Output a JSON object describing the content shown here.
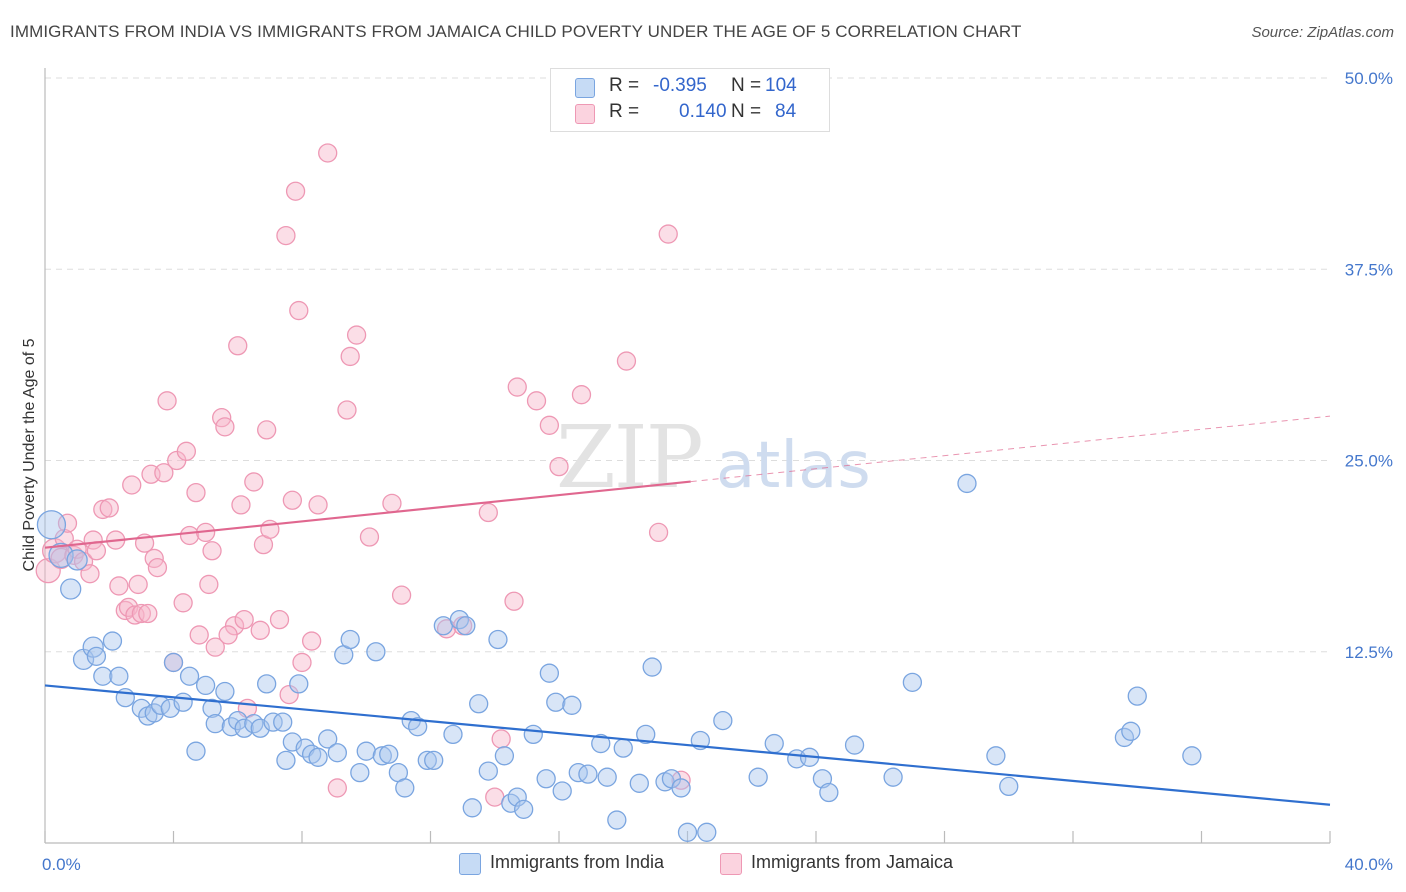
{
  "title": "IMMIGRANTS FROM INDIA VS IMMIGRANTS FROM JAMAICA CHILD POVERTY UNDER THE AGE OF 5 CORRELATION CHART",
  "source": "Source: ZipAtlas.com",
  "watermark": {
    "zip": "ZIP",
    "atlas": "atlas"
  },
  "colors": {
    "india_fill": "#a9c6ee",
    "india_stroke": "#7aa5e0",
    "india_line": "#2f6fcf",
    "jamaica_fill": "#f6b6c9",
    "jamaica_stroke": "#ee98b4",
    "jamaica_line": "#e0678f",
    "tick_label": "#4477cc",
    "grid": "#dddddd"
  },
  "legend": {
    "rows": [
      {
        "r_label": "R =",
        "r_value": "-0.395",
        "n_label": "N =",
        "n_value": "104"
      },
      {
        "r_label": "R =",
        "r_value": "0.140",
        "n_label": "N =",
        "n_value": "84"
      }
    ]
  },
  "bottom_legend": {
    "india": "Immigrants from India",
    "jamaica": "Immigrants from Jamaica"
  },
  "chart_data": {
    "type": "scatter",
    "title": "IMMIGRANTS FROM INDIA VS IMMIGRANTS FROM JAMAICA CHILD POVERTY UNDER THE AGE OF 5 CORRELATION CHART",
    "xlabel": "",
    "ylabel": "Child Poverty Under the Age of 5",
    "xlim": [
      0,
      40
    ],
    "ylim": [
      0,
      50
    ],
    "x_tick_labels": [
      "0.0%",
      "40.0%"
    ],
    "y_ticks": [
      12.5,
      25.0,
      37.5,
      50.0
    ],
    "y_tick_labels": [
      "12.5%",
      "25.0%",
      "37.5%",
      "50.0%"
    ],
    "grid": true,
    "legend_position": "top-center",
    "series": [
      {
        "name": "Immigrants from India",
        "color": "#a9c6ee",
        "trend": {
          "x": [
            0,
            40
          ],
          "y": [
            10.3,
            2.5
          ],
          "dashed_from_x": null
        },
        "points": [
          [
            0.2,
            20.8,
            14
          ],
          [
            0.5,
            18.8,
            12
          ],
          [
            1.0,
            18.5,
            10
          ],
          [
            0.8,
            16.6,
            10
          ],
          [
            1.2,
            12.0,
            10
          ],
          [
            1.5,
            12.8,
            10
          ],
          [
            1.6,
            12.2,
            9
          ],
          [
            1.8,
            10.9,
            9
          ],
          [
            2.1,
            13.2,
            9
          ],
          [
            2.3,
            10.9,
            9
          ],
          [
            2.5,
            9.5,
            9
          ],
          [
            3.0,
            8.8,
            9
          ],
          [
            3.2,
            8.3,
            9
          ],
          [
            3.4,
            8.5,
            9
          ],
          [
            3.6,
            9.0,
            9
          ],
          [
            3.9,
            8.8,
            9
          ],
          [
            4.0,
            11.8,
            9
          ],
          [
            4.3,
            9.2,
            9
          ],
          [
            4.5,
            10.9,
            9
          ],
          [
            4.7,
            6.0,
            9
          ],
          [
            5.0,
            10.3,
            9
          ],
          [
            5.2,
            8.8,
            9
          ],
          [
            5.3,
            7.8,
            9
          ],
          [
            5.6,
            9.9,
            9
          ],
          [
            5.8,
            7.6,
            9
          ],
          [
            6.0,
            8.0,
            9
          ],
          [
            6.2,
            7.5,
            9
          ],
          [
            6.5,
            7.8,
            9
          ],
          [
            6.7,
            7.5,
            9
          ],
          [
            6.9,
            10.4,
            9
          ],
          [
            7.1,
            7.9,
            9
          ],
          [
            7.4,
            7.9,
            9
          ],
          [
            7.5,
            5.4,
            9
          ],
          [
            7.7,
            6.6,
            9
          ],
          [
            7.9,
            10.4,
            9
          ],
          [
            8.1,
            6.2,
            9
          ],
          [
            8.3,
            5.8,
            9
          ],
          [
            8.5,
            5.6,
            9
          ],
          [
            8.8,
            6.8,
            9
          ],
          [
            9.1,
            5.9,
            9
          ],
          [
            9.3,
            12.3,
            9
          ],
          [
            9.5,
            13.3,
            9
          ],
          [
            9.8,
            4.6,
            9
          ],
          [
            10.0,
            6.0,
            9
          ],
          [
            10.3,
            12.5,
            9
          ],
          [
            10.5,
            5.7,
            9
          ],
          [
            10.7,
            5.8,
            9
          ],
          [
            11.0,
            4.6,
            9
          ],
          [
            11.2,
            3.6,
            9
          ],
          [
            11.4,
            8.0,
            9
          ],
          [
            11.6,
            7.6,
            9
          ],
          [
            11.9,
            5.4,
            9
          ],
          [
            12.1,
            5.4,
            9
          ],
          [
            12.4,
            14.2,
            9
          ],
          [
            12.7,
            7.1,
            9
          ],
          [
            12.9,
            14.6,
            9
          ],
          [
            13.1,
            14.2,
            9
          ],
          [
            13.3,
            2.3,
            9
          ],
          [
            13.5,
            9.1,
            9
          ],
          [
            13.8,
            4.7,
            9
          ],
          [
            14.1,
            13.3,
            9
          ],
          [
            14.3,
            5.7,
            9
          ],
          [
            14.5,
            2.6,
            9
          ],
          [
            14.7,
            3.0,
            9
          ],
          [
            14.9,
            2.2,
            9
          ],
          [
            15.2,
            7.1,
            9
          ],
          [
            15.6,
            4.2,
            9
          ],
          [
            15.7,
            11.1,
            9
          ],
          [
            15.9,
            9.2,
            9
          ],
          [
            16.1,
            3.4,
            9
          ],
          [
            16.4,
            9.0,
            9
          ],
          [
            16.6,
            4.6,
            9
          ],
          [
            16.9,
            4.5,
            9
          ],
          [
            17.3,
            6.5,
            9
          ],
          [
            17.5,
            4.3,
            9
          ],
          [
            17.8,
            1.5,
            9
          ],
          [
            18.0,
            6.2,
            9
          ],
          [
            18.5,
            3.9,
            9
          ],
          [
            18.7,
            7.1,
            9
          ],
          [
            18.9,
            11.5,
            9
          ],
          [
            19.3,
            4.0,
            9
          ],
          [
            19.5,
            4.2,
            9
          ],
          [
            19.8,
            3.6,
            9
          ],
          [
            20.0,
            0.7,
            9
          ],
          [
            20.4,
            6.7,
            9
          ],
          [
            20.6,
            0.7,
            9
          ],
          [
            21.1,
            8.0,
            9
          ],
          [
            22.2,
            4.3,
            9
          ],
          [
            22.7,
            6.5,
            9
          ],
          [
            23.4,
            5.5,
            9
          ],
          [
            23.8,
            5.6,
            9
          ],
          [
            24.2,
            4.2,
            9
          ],
          [
            24.4,
            3.3,
            9
          ],
          [
            25.2,
            6.4,
            9
          ],
          [
            26.4,
            4.3,
            9
          ],
          [
            27.0,
            10.5,
            9
          ],
          [
            28.7,
            23.5,
            9
          ],
          [
            29.6,
            5.7,
            9
          ],
          [
            30.0,
            3.7,
            9
          ],
          [
            33.6,
            6.9,
            9
          ],
          [
            33.8,
            7.3,
            9
          ],
          [
            34.0,
            9.6,
            9
          ],
          [
            35.7,
            5.7,
            9
          ]
        ]
      },
      {
        "name": "Immigrants from Jamaica",
        "color": "#f6b6c9",
        "trend": {
          "x": [
            0,
            40
          ],
          "y": [
            19.3,
            27.9
          ],
          "dashed_from_x": 20.1
        },
        "points": [
          [
            0.1,
            17.8,
            12
          ],
          [
            0.3,
            19.1,
            12
          ],
          [
            0.5,
            18.6,
            10
          ],
          [
            0.6,
            19.9,
            9
          ],
          [
            0.7,
            20.9,
            9
          ],
          [
            0.9,
            18.8,
            9
          ],
          [
            1.0,
            19.2,
            9
          ],
          [
            1.2,
            18.4,
            9
          ],
          [
            1.4,
            17.6,
            9
          ],
          [
            1.5,
            19.8,
            9
          ],
          [
            1.6,
            19.1,
            9
          ],
          [
            1.8,
            21.8,
            9
          ],
          [
            2.0,
            21.9,
            9
          ],
          [
            2.2,
            19.8,
            9
          ],
          [
            2.3,
            16.8,
            9
          ],
          [
            2.5,
            15.2,
            9
          ],
          [
            2.6,
            15.4,
            9
          ],
          [
            2.7,
            23.4,
            9
          ],
          [
            2.8,
            14.9,
            9
          ],
          [
            3.0,
            15.0,
            9
          ],
          [
            3.1,
            19.6,
            9
          ],
          [
            3.3,
            24.1,
            9
          ],
          [
            3.4,
            18.6,
            9
          ],
          [
            3.5,
            18.0,
            9
          ],
          [
            3.7,
            24.2,
            9
          ],
          [
            3.8,
            28.9,
            9
          ],
          [
            4.0,
            11.8,
            9
          ],
          [
            4.1,
            25.0,
            9
          ],
          [
            4.3,
            15.7,
            9
          ],
          [
            4.4,
            25.6,
            9
          ],
          [
            4.5,
            20.1,
            9
          ],
          [
            4.7,
            22.9,
            9
          ],
          [
            4.8,
            13.6,
            9
          ],
          [
            5.0,
            20.3,
            9
          ],
          [
            5.1,
            16.9,
            9
          ],
          [
            5.2,
            19.1,
            9
          ],
          [
            5.3,
            12.8,
            9
          ],
          [
            5.5,
            27.8,
            9
          ],
          [
            5.6,
            27.2,
            9
          ],
          [
            5.9,
            14.2,
            9
          ],
          [
            6.0,
            32.5,
            9
          ],
          [
            6.1,
            22.1,
            9
          ],
          [
            6.2,
            14.6,
            9
          ],
          [
            6.3,
            8.8,
            9
          ],
          [
            6.5,
            23.6,
            9
          ],
          [
            6.7,
            13.9,
            9
          ],
          [
            6.8,
            19.5,
            9
          ],
          [
            6.9,
            27.0,
            9
          ],
          [
            7.0,
            20.5,
            9
          ],
          [
            7.3,
            14.6,
            9
          ],
          [
            7.5,
            39.7,
            9
          ],
          [
            7.6,
            9.7,
            9
          ],
          [
            7.7,
            22.4,
            9
          ],
          [
            7.8,
            42.6,
            9
          ],
          [
            7.9,
            34.8,
            9
          ],
          [
            8.0,
            11.8,
            9
          ],
          [
            8.3,
            13.2,
            9
          ],
          [
            8.5,
            22.1,
            9
          ],
          [
            8.8,
            45.1,
            9
          ],
          [
            9.1,
            3.6,
            9
          ],
          [
            9.4,
            28.3,
            9
          ],
          [
            9.5,
            31.8,
            9
          ],
          [
            9.7,
            33.2,
            9
          ],
          [
            10.1,
            20.0,
            9
          ],
          [
            10.8,
            22.2,
            9
          ],
          [
            11.1,
            16.2,
            9
          ],
          [
            12.5,
            14.0,
            9
          ],
          [
            13.0,
            14.2,
            9
          ],
          [
            13.8,
            21.6,
            9
          ],
          [
            14.2,
            6.8,
            9
          ],
          [
            14.0,
            3.0,
            9
          ],
          [
            14.6,
            15.8,
            9
          ],
          [
            14.7,
            29.8,
            9
          ],
          [
            15.3,
            28.9,
            9
          ],
          [
            15.7,
            27.3,
            9
          ],
          [
            16.0,
            24.6,
            9
          ],
          [
            16.7,
            29.3,
            9
          ],
          [
            18.1,
            31.5,
            9
          ],
          [
            19.1,
            20.3,
            9
          ],
          [
            19.4,
            39.8,
            9
          ],
          [
            19.8,
            4.1,
            9
          ],
          [
            3.2,
            15.0,
            9
          ],
          [
            2.9,
            16.9,
            9
          ],
          [
            5.7,
            13.6,
            9
          ]
        ]
      }
    ]
  }
}
